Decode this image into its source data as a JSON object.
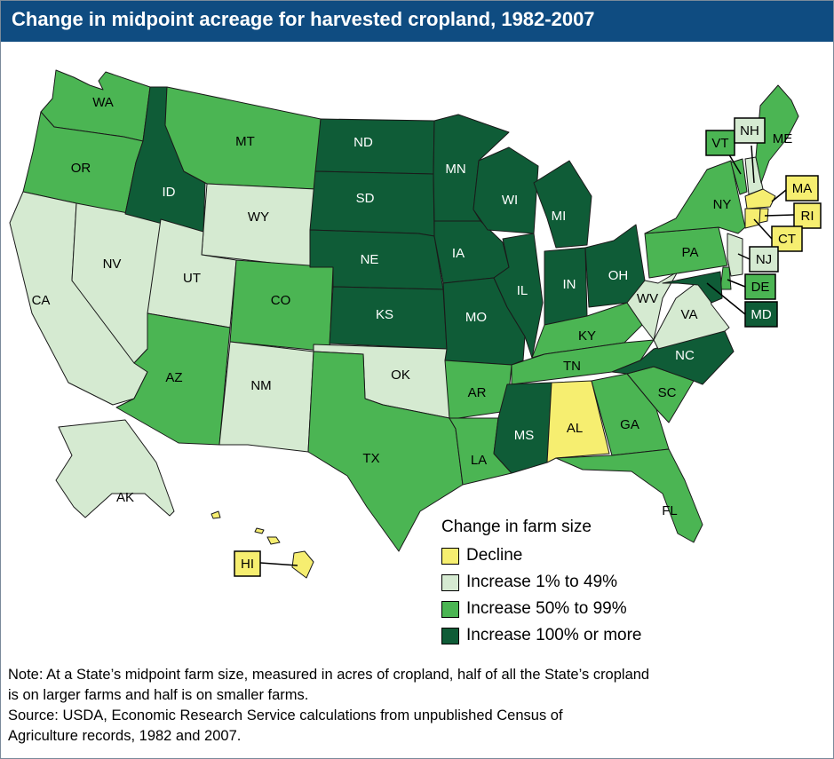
{
  "title": "Change in midpoint acreage for harvested cropland, 1982-2007",
  "colors": {
    "decline": "#f6ee70",
    "inc1_49": "#d5ead1",
    "inc50_99": "#4bb553",
    "inc100": "#0f5c37",
    "title_bg": "#0f4c81"
  },
  "states": {
    "WA": {
      "label": "WA",
      "category": "inc50_99"
    },
    "OR": {
      "label": "OR",
      "category": "inc50_99"
    },
    "CA": {
      "label": "CA",
      "category": "inc1_49"
    },
    "NV": {
      "label": "NV",
      "category": "inc1_49"
    },
    "ID": {
      "label": "ID",
      "category": "inc100"
    },
    "MT": {
      "label": "MT",
      "category": "inc50_99"
    },
    "WY": {
      "label": "WY",
      "category": "inc1_49"
    },
    "UT": {
      "label": "UT",
      "category": "inc1_49"
    },
    "AZ": {
      "label": "AZ",
      "category": "inc50_99"
    },
    "CO": {
      "label": "CO",
      "category": "inc50_99"
    },
    "NM": {
      "label": "NM",
      "category": "inc1_49"
    },
    "ND": {
      "label": "ND",
      "category": "inc100"
    },
    "SD": {
      "label": "SD",
      "category": "inc100"
    },
    "NE": {
      "label": "NE",
      "category": "inc100"
    },
    "KS": {
      "label": "KS",
      "category": "inc100"
    },
    "OK": {
      "label": "OK",
      "category": "inc1_49"
    },
    "TX": {
      "label": "TX",
      "category": "inc50_99"
    },
    "MN": {
      "label": "MN",
      "category": "inc100"
    },
    "IA": {
      "label": "IA",
      "category": "inc100"
    },
    "MO": {
      "label": "MO",
      "category": "inc100"
    },
    "AR": {
      "label": "AR",
      "category": "inc50_99"
    },
    "LA": {
      "label": "LA",
      "category": "inc50_99"
    },
    "WI": {
      "label": "WI",
      "category": "inc100"
    },
    "IL": {
      "label": "IL",
      "category": "inc100"
    },
    "MI": {
      "label": "MI",
      "category": "inc100"
    },
    "IN": {
      "label": "IN",
      "category": "inc100"
    },
    "OH": {
      "label": "OH",
      "category": "inc100"
    },
    "KY": {
      "label": "KY",
      "category": "inc50_99"
    },
    "TN": {
      "label": "TN",
      "category": "inc50_99"
    },
    "MS": {
      "label": "MS",
      "category": "inc100"
    },
    "AL": {
      "label": "AL",
      "category": "decline"
    },
    "GA": {
      "label": "GA",
      "category": "inc50_99"
    },
    "FL": {
      "label": "FL",
      "category": "inc50_99"
    },
    "SC": {
      "label": "SC",
      "category": "inc50_99"
    },
    "NC": {
      "label": "NC",
      "category": "inc100"
    },
    "VA": {
      "label": "VA",
      "category": "inc1_49"
    },
    "WV": {
      "label": "WV",
      "category": "inc1_49"
    },
    "PA": {
      "label": "PA",
      "category": "inc50_99"
    },
    "NY": {
      "label": "NY",
      "category": "inc50_99"
    },
    "ME": {
      "label": "ME",
      "category": "inc50_99"
    },
    "NH": {
      "label": "NH",
      "category": "inc1_49"
    },
    "VT": {
      "label": "VT",
      "category": "inc50_99"
    },
    "MA": {
      "label": "MA",
      "category": "decline"
    },
    "RI": {
      "label": "RI",
      "category": "decline"
    },
    "CT": {
      "label": "CT",
      "category": "decline"
    },
    "NJ": {
      "label": "NJ",
      "category": "inc1_49"
    },
    "DE": {
      "label": "DE",
      "category": "inc50_99"
    },
    "MD": {
      "label": "MD",
      "category": "inc100"
    },
    "AK": {
      "label": "AK",
      "category": "inc1_49"
    },
    "HI": {
      "label": "HI",
      "category": "decline"
    }
  },
  "legend": {
    "title": "Change in farm size",
    "items": [
      {
        "label": "Decline",
        "category": "decline"
      },
      {
        "label": "Increase 1% to 49%",
        "category": "inc1_49"
      },
      {
        "label": "Increase 50% to 99%",
        "category": "inc50_99"
      },
      {
        "label": "Increase 100% or more",
        "category": "inc100"
      }
    ]
  },
  "note": "Note: At a State’s midpoint farm size, measured in acres of cropland, half of all the State’s cropland\nis on larger farms and half is on smaller farms.",
  "source": "Source: USDA, Economic Research Service calculations from unpublished Census of\nAgriculture records, 1982 and 2007."
}
